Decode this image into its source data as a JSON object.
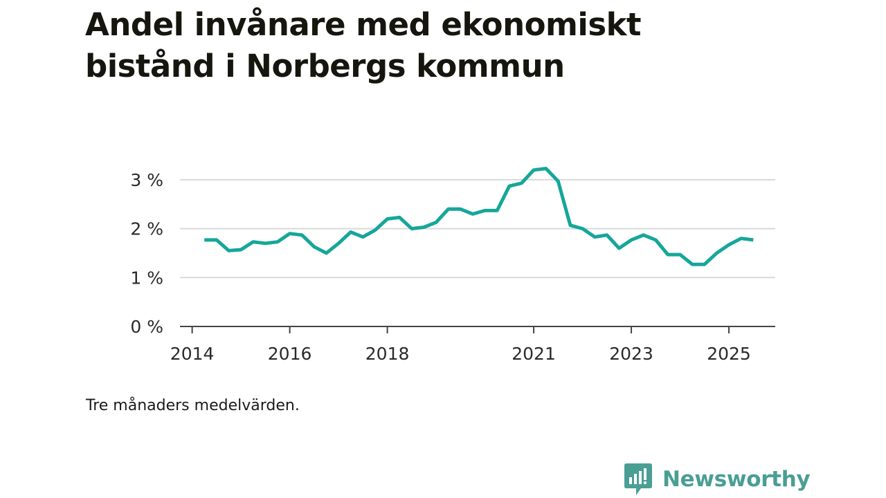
{
  "title": "Andel invånare med ekonomiskt bistånd i Norbergs kommun",
  "note": "Tre månaders medelvärden.",
  "brand": {
    "name": "Newsworthy",
    "icon": "bar-chart-speech-bubble-icon"
  },
  "colors": {
    "line": "#16a69a",
    "brand": "#4a9e94",
    "grid": "#d9d9d9",
    "axis": "#444444",
    "title": "#16160f"
  },
  "chart_data": {
    "type": "line",
    "title": "Andel invånare med ekonomiskt bistånd i Norbergs kommun",
    "xlabel": "",
    "ylabel": "",
    "unit": "%",
    "ylim": [
      0,
      3.3
    ],
    "xlim": [
      2013.75,
      2025.95
    ],
    "grid": true,
    "x_ticks": [
      {
        "value": 2014,
        "label": "2014"
      },
      {
        "value": 2016,
        "label": "2016"
      },
      {
        "value": 2018,
        "label": "2018"
      },
      {
        "value": 2021,
        "label": "2021"
      },
      {
        "value": 2023,
        "label": "2023"
      },
      {
        "value": 2025,
        "label": "2025"
      }
    ],
    "y_ticks": [
      {
        "value": 0,
        "label": "0 %"
      },
      {
        "value": 1,
        "label": "1 %"
      },
      {
        "value": 2,
        "label": "2 %"
      },
      {
        "value": 3,
        "label": "3 %"
      }
    ],
    "series": [
      {
        "name": "Andel invånare med ekonomiskt bistånd",
        "x": [
          2014.25,
          2014.5,
          2014.75,
          2015.0,
          2015.25,
          2015.5,
          2015.75,
          2016.0,
          2016.25,
          2016.5,
          2016.75,
          2017.0,
          2017.25,
          2017.5,
          2017.75,
          2018.0,
          2018.25,
          2018.5,
          2018.75,
          2019.0,
          2019.25,
          2019.5,
          2019.75,
          2020.0,
          2020.25,
          2020.5,
          2020.75,
          2021.0,
          2021.25,
          2021.5,
          2021.75,
          2022.0,
          2022.25,
          2022.5,
          2022.75,
          2023.0,
          2023.25,
          2023.5,
          2023.75,
          2024.0,
          2024.25,
          2024.5,
          2024.75,
          2025.0,
          2025.25,
          2025.5
        ],
        "values": [
          1.77,
          1.77,
          1.55,
          1.57,
          1.73,
          1.7,
          1.73,
          1.9,
          1.87,
          1.63,
          1.5,
          1.7,
          1.93,
          1.83,
          1.97,
          2.2,
          2.23,
          2.0,
          2.03,
          2.13,
          2.4,
          2.4,
          2.3,
          2.37,
          2.37,
          2.87,
          2.93,
          3.2,
          3.23,
          2.97,
          2.07,
          2.0,
          1.83,
          1.87,
          1.6,
          1.77,
          1.87,
          1.77,
          1.47,
          1.47,
          1.27,
          1.27,
          1.5,
          1.67,
          1.8,
          1.77
        ]
      }
    ]
  }
}
